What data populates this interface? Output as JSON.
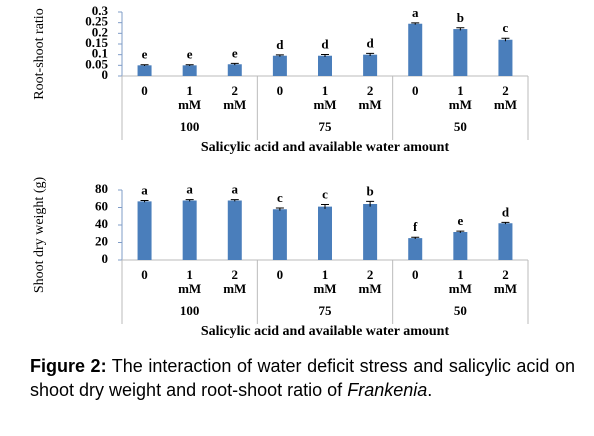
{
  "chart_data": [
    {
      "type": "bar",
      "y_label": "Root-shoot ratio",
      "x_label": "Salicylic acid and available water amount",
      "categories": [
        "0",
        "1 mM",
        "2 mM",
        "0",
        "1 mM",
        "2 mM",
        "0",
        "1 mM",
        "2 mM"
      ],
      "groups": [
        "100",
        "75",
        "50"
      ],
      "values": [
        0.05,
        0.05,
        0.055,
        0.095,
        0.095,
        0.1,
        0.245,
        0.22,
        0.17
      ],
      "errors": [
        0.003,
        0.003,
        0.004,
        0.004,
        0.006,
        0.006,
        0.004,
        0.006,
        0.007
      ],
      "letters": [
        "e",
        "e",
        "e",
        "d",
        "d",
        "d",
        "a",
        "b",
        "c"
      ],
      "color": "#4a7ebb",
      "ylim": [
        0,
        0.3
      ],
      "yticks": [
        0,
        0.05,
        0.1,
        0.15,
        0.2,
        0.25,
        0.3
      ]
    },
    {
      "type": "bar",
      "y_label": "Shoot dry weight (g)",
      "x_label": "Salicylic acid and available water amount",
      "categories": [
        "0",
        "1 mM",
        "2 mM",
        "0",
        "1 mM",
        "2 mM",
        "0",
        "1 mM",
        "2 mM"
      ],
      "groups": [
        "100",
        "75",
        "50"
      ],
      "values": [
        67,
        68,
        68,
        58,
        61,
        64,
        25,
        32,
        42
      ],
      "errors": [
        1,
        1,
        1,
        1.5,
        2.5,
        3,
        1,
        1,
        1
      ],
      "letters": [
        "a",
        "a",
        "a",
        "c",
        "c",
        "b",
        "f",
        "e",
        "d"
      ],
      "color": "#4a7ebb",
      "ylim": [
        0,
        80
      ],
      "yticks": [
        0,
        20,
        40,
        60,
        80
      ]
    }
  ],
  "caption": {
    "label": "Figure 2:",
    "text": "The interaction of water deficit stress and salicylic acid on shoot dry weight and root-shoot ratio of",
    "species": "Frankenia",
    "end": "."
  }
}
